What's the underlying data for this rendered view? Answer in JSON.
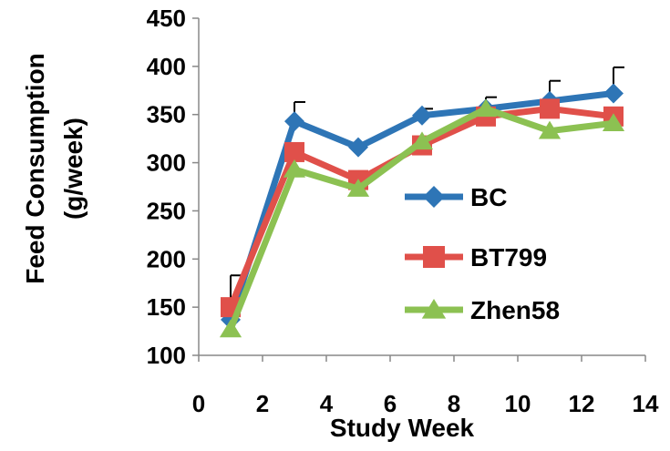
{
  "chart_data": {
    "type": "line",
    "title": "",
    "xlabel": "Study Week",
    "ylabel_lines": [
      "Feed Consumption",
      "(g/week)"
    ],
    "xlim": [
      0,
      14
    ],
    "ylim": [
      100,
      450
    ],
    "x_ticks": [
      "0",
      "2",
      "4",
      "6",
      "8",
      "10",
      "12",
      "14"
    ],
    "y_ticks": [
      "100",
      "150",
      "200",
      "250",
      "300",
      "350",
      "400",
      "450"
    ],
    "grid": false,
    "legend_position": "center-right",
    "x": [
      1,
      3,
      5,
      7,
      9,
      11,
      13
    ],
    "series": [
      {
        "name": "BC",
        "color": "#2E75B6",
        "marker": "diamond",
        "values": [
          137,
          343,
          316,
          349,
          356,
          364,
          372
        ],
        "errors": [
          0,
          20,
          0,
          7,
          12,
          21,
          27
        ]
      },
      {
        "name": "BT799",
        "color": "#E0504A",
        "marker": "square",
        "values": [
          150,
          311,
          282,
          318,
          348,
          356,
          348
        ],
        "errors": [
          33,
          0,
          5,
          0,
          0,
          0,
          0
        ]
      },
      {
        "name": "Zhen58",
        "color": "#8CC152",
        "marker": "triangle",
        "values": [
          127,
          293,
          273,
          322,
          356,
          333,
          341
        ],
        "errors": [
          0,
          0,
          0,
          0,
          0,
          0,
          0
        ]
      }
    ]
  }
}
